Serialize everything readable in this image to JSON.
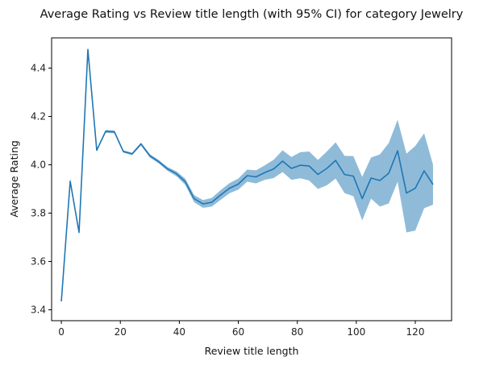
{
  "chart_data": {
    "type": "line",
    "title": "Average Rating vs Review title length (with 95% CI) for category Jewelry",
    "xlabel": "Review title length",
    "ylabel": "Average Rating",
    "xlim": [
      -3.3,
      132.3
    ],
    "ylim": [
      3.355,
      4.525
    ],
    "xticks": [
      0,
      20,
      40,
      60,
      80,
      100,
      120
    ],
    "yticks": [
      3.4,
      3.6,
      3.8,
      4.0,
      4.2,
      4.4
    ],
    "ytick_labels": [
      "3.4",
      "3.6",
      "3.8",
      "4.0",
      "4.2",
      "4.4"
    ],
    "grid": false,
    "colors": {
      "line": "#1f77b4",
      "band": "#1f77b4"
    },
    "series": [
      {
        "x": [
          0,
          3,
          6,
          9,
          12,
          15,
          18,
          21,
          24,
          27,
          30,
          33,
          36,
          39,
          42,
          45,
          48,
          51,
          54,
          57,
          60,
          63,
          66,
          69,
          72,
          75,
          78,
          81,
          84,
          87,
          90,
          93,
          96,
          99,
          102,
          105,
          108,
          111,
          114,
          117,
          120,
          123,
          126
        ],
        "y": [
          3.435,
          3.932,
          3.72,
          4.477,
          4.06,
          4.138,
          4.136,
          4.055,
          4.045,
          4.086,
          4.037,
          4.013,
          3.983,
          3.963,
          3.93,
          3.86,
          3.838,
          3.845,
          3.875,
          3.903,
          3.92,
          3.955,
          3.95,
          3.968,
          3.983,
          4.015,
          3.985,
          3.998,
          3.995,
          3.96,
          3.985,
          4.018,
          3.96,
          3.953,
          3.86,
          3.945,
          3.935,
          3.965,
          4.058,
          3.883,
          3.903,
          3.975,
          3.918
        ],
        "lower": [
          3.425,
          3.922,
          3.712,
          4.465,
          4.055,
          4.132,
          4.13,
          4.05,
          4.04,
          4.08,
          4.03,
          4.006,
          3.975,
          3.953,
          3.917,
          3.845,
          3.822,
          3.827,
          3.855,
          3.882,
          3.897,
          3.93,
          3.923,
          3.938,
          3.945,
          3.97,
          3.938,
          3.944,
          3.935,
          3.9,
          3.915,
          3.943,
          3.883,
          3.87,
          3.77,
          3.86,
          3.827,
          3.84,
          3.93,
          3.72,
          3.728,
          3.82,
          3.835
        ],
        "upper": [
          3.445,
          3.942,
          3.728,
          4.489,
          4.065,
          4.144,
          4.142,
          4.06,
          4.05,
          4.092,
          4.044,
          4.02,
          3.991,
          3.973,
          3.943,
          3.875,
          3.854,
          3.863,
          3.895,
          3.924,
          3.943,
          3.98,
          3.977,
          3.998,
          4.021,
          4.06,
          4.032,
          4.052,
          4.055,
          4.02,
          4.055,
          4.093,
          4.037,
          4.036,
          3.95,
          4.03,
          4.043,
          4.09,
          4.186,
          4.046,
          4.078,
          4.13,
          4.001
        ]
      }
    ]
  }
}
